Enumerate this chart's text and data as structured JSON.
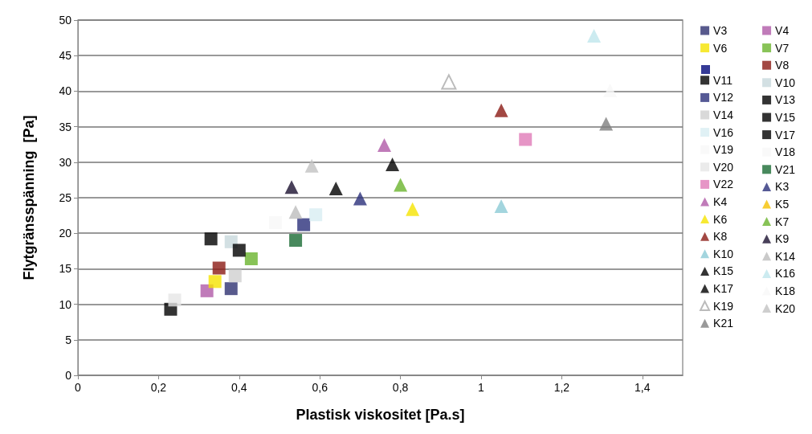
{
  "chart_data": {
    "type": "scatter",
    "xlabel": "Plastisk viskositet [Pa.s]",
    "ylabel": "Flytgränsspänning  [Pa]",
    "xlim": [
      0,
      1.5
    ],
    "xticks": [
      0,
      {
        "value": 0.2,
        "label": "0,2"
      },
      {
        "value": 0.4,
        "label": "0,4"
      },
      {
        "value": 0.6,
        "label": "0,6"
      },
      {
        "value": 0.8,
        "label": "0,8"
      },
      {
        "value": 1,
        "label": "1"
      },
      {
        "value": 1.2,
        "label": "1,2"
      },
      {
        "value": 1.4,
        "label": "1,4"
      }
    ],
    "ylim": [
      0,
      50
    ],
    "yticks": [
      0,
      5,
      10,
      15,
      20,
      25,
      30,
      35,
      40,
      45,
      50
    ],
    "grid": "y",
    "legend": "right",
    "series": [
      {
        "name": "V3",
        "color": "#2e3170",
        "marker": "square",
        "x": [
          0.38
        ],
        "values": [
          12.2
        ]
      },
      {
        "name": "V4",
        "color": "#b05aa8",
        "marker": "square",
        "x": [
          0.32
        ],
        "values": [
          11.9
        ]
      },
      {
        "name": "V6",
        "color": "#f5e400",
        "marker": "square",
        "x": [
          0.34
        ],
        "values": [
          13.2
        ]
      },
      {
        "name": "V7",
        "color": "#6ab42d",
        "marker": "square",
        "x": [
          0.43
        ],
        "values": [
          16.4
        ]
      },
      {
        "color": "#353a96",
        "marker": "square",
        "x": [
          null
        ],
        "values": [
          null
        ]
      },
      {
        "name": "V8",
        "color": "#8b1a14",
        "marker": "square",
        "x": [
          0.35
        ],
        "values": [
          15.1
        ]
      },
      {
        "name": "V11",
        "color": "#000000",
        "marker": "square",
        "x": [
          0.33
        ],
        "values": [
          19.2
        ]
      },
      {
        "name": "V10",
        "color": "#c8d8dc",
        "marker": "square",
        "x": [
          0.38
        ],
        "values": [
          18.8
        ]
      },
      {
        "name": "V12",
        "color": "#2b2f7a",
        "marker": "square",
        "x": [
          0.56
        ],
        "values": [
          21.2
        ]
      },
      {
        "name": "V13",
        "color": "#000000",
        "marker": "square",
        "x": [
          null
        ],
        "values": [
          null
        ]
      },
      {
        "name": "V14",
        "color": "#cfcfcf",
        "marker": "square",
        "x": [
          0.39
        ],
        "values": [
          14
        ]
      },
      {
        "name": "V15",
        "color": "#000000",
        "marker": "square",
        "x": [
          0.4
        ],
        "values": [
          17.6
        ]
      },
      {
        "name": "V16",
        "color": "#d8eef2",
        "marker": "square",
        "x": [
          0.59
        ],
        "values": [
          22.6
        ]
      },
      {
        "name": "V17",
        "color": "#000000",
        "marker": "square",
        "x": [
          0.23
        ],
        "values": [
          9.3
        ]
      },
      {
        "name": "V19",
        "color": "#f8f8f8",
        "marker": "square",
        "x": [
          null
        ],
        "values": [
          null
        ]
      },
      {
        "name": "V18",
        "color": "#f8f8f8",
        "marker": "square",
        "x": [
          0.49
        ],
        "values": [
          21.5
        ]
      },
      {
        "name": "V20",
        "color": "#e6e6e6",
        "marker": "square",
        "x": [
          0.24
        ],
        "values": [
          10.6
        ]
      },
      {
        "name": "V21",
        "color": "#1a6b35",
        "marker": "square",
        "x": [
          0.54
        ],
        "values": [
          19
        ]
      },
      {
        "name": "V22",
        "color": "#e07ab8",
        "marker": "square",
        "x": [
          1.11
        ],
        "values": [
          33.2
        ]
      },
      {
        "name": "K3",
        "color": "#2b2f7a",
        "marker": "triangle",
        "x": [
          0.7
        ],
        "values": [
          24.9
        ]
      },
      {
        "name": "K4",
        "color": "#b05aa8",
        "marker": "triangle",
        "x": [
          0.76
        ],
        "values": [
          32.4
        ]
      },
      {
        "name": "K5",
        "color": "#f5c000",
        "marker": "triangle",
        "x": [
          null
        ],
        "values": [
          null
        ]
      },
      {
        "name": "K6",
        "color": "#f5e400",
        "marker": "triangle",
        "x": [
          0.83
        ],
        "values": [
          23.4
        ]
      },
      {
        "name": "K7",
        "color": "#6ab42d",
        "marker": "triangle",
        "x": [
          0.8
        ],
        "values": [
          26.8
        ]
      },
      {
        "name": "K8",
        "color": "#8b1a14",
        "marker": "triangle",
        "x": [
          1.05
        ],
        "values": [
          37.3
        ]
      },
      {
        "name": "K9",
        "color": "#1a1030",
        "marker": "triangle",
        "x": [
          0.53
        ],
        "values": [
          26.5
        ]
      },
      {
        "name": "K10",
        "color": "#8ccbd6",
        "marker": "triangle",
        "x": [
          1.05
        ],
        "values": [
          23.8
        ]
      },
      {
        "name": "K14",
        "color": "#bdbdbd",
        "marker": "triangle",
        "x": [
          0.54
        ],
        "values": [
          23
        ]
      },
      {
        "name": "K15",
        "color": "#000000",
        "marker": "triangle",
        "x": [
          0.64
        ],
        "values": [
          26.3
        ]
      },
      {
        "name": "K16",
        "color": "#bfe6ec",
        "marker": "triangle",
        "x": [
          1.28
        ],
        "values": [
          47.8
        ]
      },
      {
        "name": "K17",
        "color": "#000000",
        "marker": "triangle",
        "x": [
          0.78
        ],
        "values": [
          29.7
        ]
      },
      {
        "name": "K18",
        "color": "#f8f8f8",
        "marker": "triangle",
        "x": [
          1.32
        ],
        "values": [
          40.1
        ]
      },
      {
        "name": "K19",
        "color": "#ffffff",
        "marker": "triangle",
        "x": [
          0.92
        ],
        "values": [
          41.3
        ]
      },
      {
        "name": "K20",
        "color": "#c2c2c2",
        "marker": "triangle",
        "x": [
          0.58
        ],
        "values": [
          29.5
        ]
      },
      {
        "name": "K21",
        "color": "#808080",
        "marker": "triangle",
        "x": [
          1.31
        ],
        "values": [
          35.4
        ]
      }
    ]
  }
}
